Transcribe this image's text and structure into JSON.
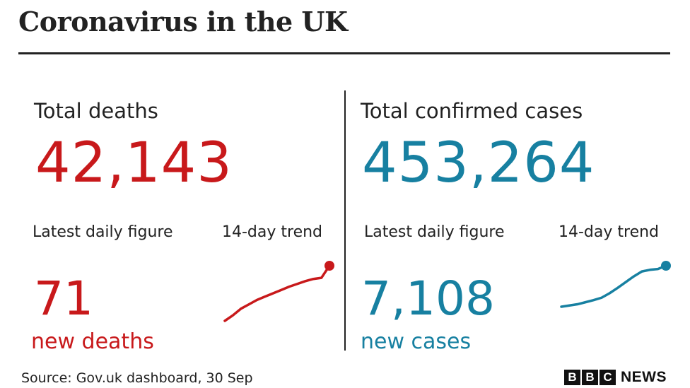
{
  "title": "Coronavirus in the UK",
  "deaths": {
    "heading": "Total deaths",
    "total": "42,143",
    "daily_label": "Latest daily figure",
    "trend_label": "14-day trend",
    "daily_value": "71",
    "daily_unit": "new deaths",
    "color": "#c8191b"
  },
  "cases": {
    "heading": "Total confirmed cases",
    "total": "453,264",
    "daily_label": "Latest daily figure",
    "trend_label": "14-day trend",
    "daily_value": "7,108",
    "daily_unit": "new cases",
    "color": "#1780a1"
  },
  "chart_data": [
    {
      "type": "line",
      "series": [
        {
          "values": [
            0.0,
            0.1,
            0.22,
            0.3,
            0.38,
            0.44,
            0.5,
            0.56,
            0.62,
            0.67,
            0.72,
            0.76,
            0.78,
            1.0
          ]
        }
      ]
    },
    {
      "type": "line",
      "series": [
        {
          "values": [
            0.0,
            0.03,
            0.06,
            0.11,
            0.16,
            0.22,
            0.33,
            0.46,
            0.6,
            0.74,
            0.86,
            0.9,
            0.92,
            1.0
          ]
        }
      ]
    }
  ],
  "source": "Source: Gov.uk dashboard, 30 Sep",
  "logo": {
    "letters": [
      "B",
      "B",
      "C"
    ],
    "news": "NEWS"
  }
}
